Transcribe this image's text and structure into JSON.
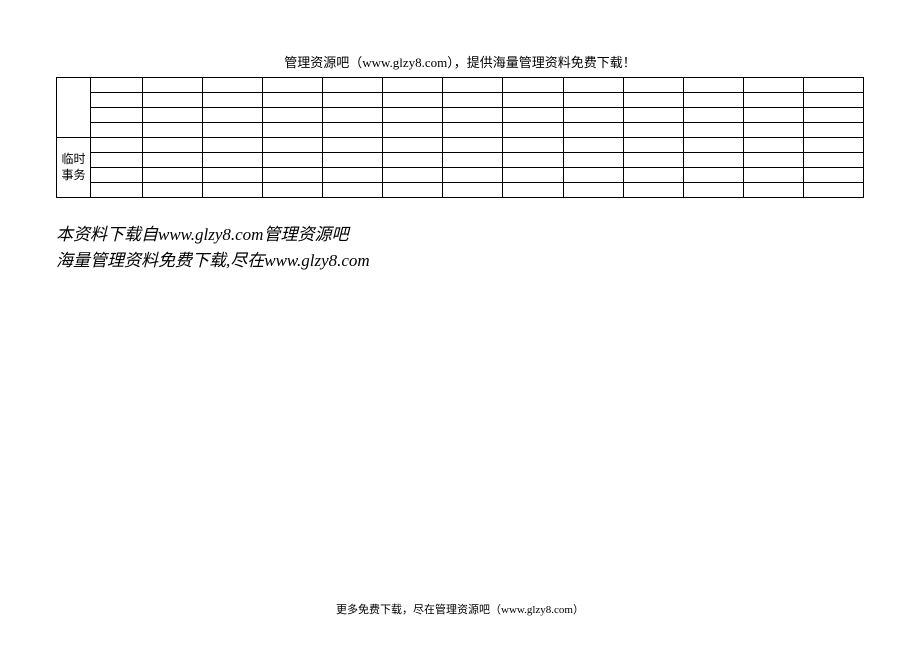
{
  "header": {
    "text": "管理资源吧（www.glzy8.com），提供海量管理资料免费下载！"
  },
  "table": {
    "section1_rows": 4,
    "section2_label": "临时事务",
    "section2_rows": 4,
    "data_columns": 13,
    "border_color": "#000000",
    "background_color": "#ffffff"
  },
  "body": {
    "line1": "本资料下载自www.glzy8.com管理资源吧",
    "line2": "海量管理资料免费下载,尽在www.glzy8.com"
  },
  "footer": {
    "text": "更多免费下载，尽在管理资源吧（www.glzy8.com）"
  },
  "styling": {
    "page_bg": "#ffffff",
    "text_color": "#000000",
    "header_fontsize": 13,
    "body_fontsize": 17,
    "footer_fontsize": 11,
    "table_row_height": 15
  }
}
